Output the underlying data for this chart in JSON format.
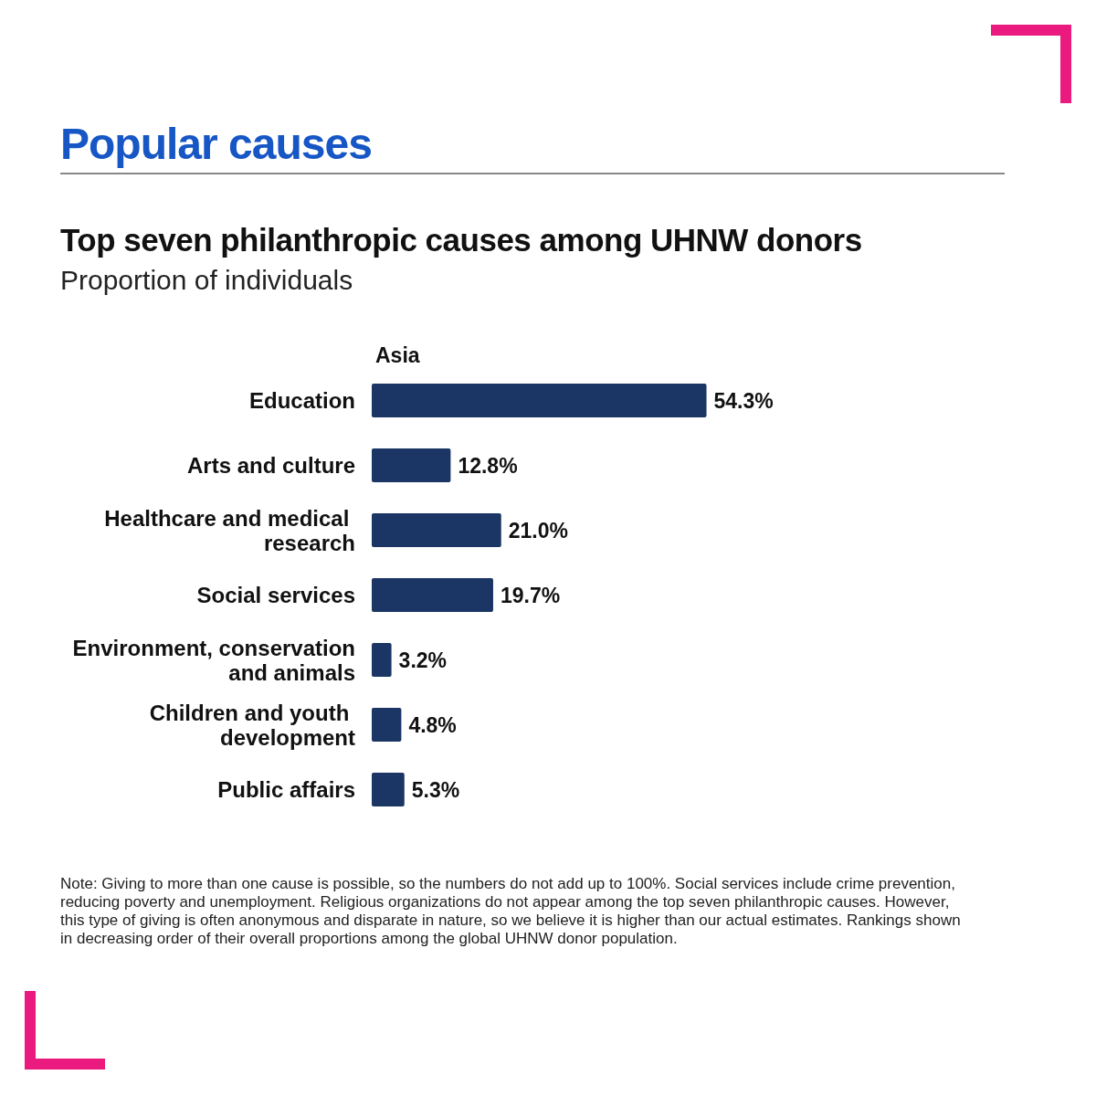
{
  "chart_data": {
    "type": "bar",
    "orientation": "horizontal",
    "title": "Popular causes",
    "subtitle": "Top seven philanthropic causes among UHNW donors",
    "xlabel": "Proportion of individuals",
    "categories": [
      "Education",
      "Arts and culture",
      "Healthcare and medical research",
      "Social services",
      "Environment, conservation and animals",
      "Children and youth development",
      "Public affairs"
    ],
    "series": [
      {
        "name": "Asia",
        "color": "#1b3564",
        "values": [
          54.3,
          12.8,
          21.0,
          19.7,
          3.2,
          4.8,
          5.3
        ],
        "value_labels": [
          "54.3%",
          "12.8%",
          "21.0%",
          "19.7%",
          "3.2%",
          "4.8%",
          "5.3%"
        ]
      }
    ],
    "annotations": [
      "Note: Giving to more than one cause is possible, so the numbers do not add up to 100%. Social services include crime prevention, reducing poverty and  unemployment. Religious organizations do not appear among the top seven philanthropic causes. However, this type of giving is often anonymous and disparate in nature, so we believe it is higher than our actual estimates. Rankings shown in decreasing order of  their overall proportions among the global UHNW donor population."
    ]
  }
}
